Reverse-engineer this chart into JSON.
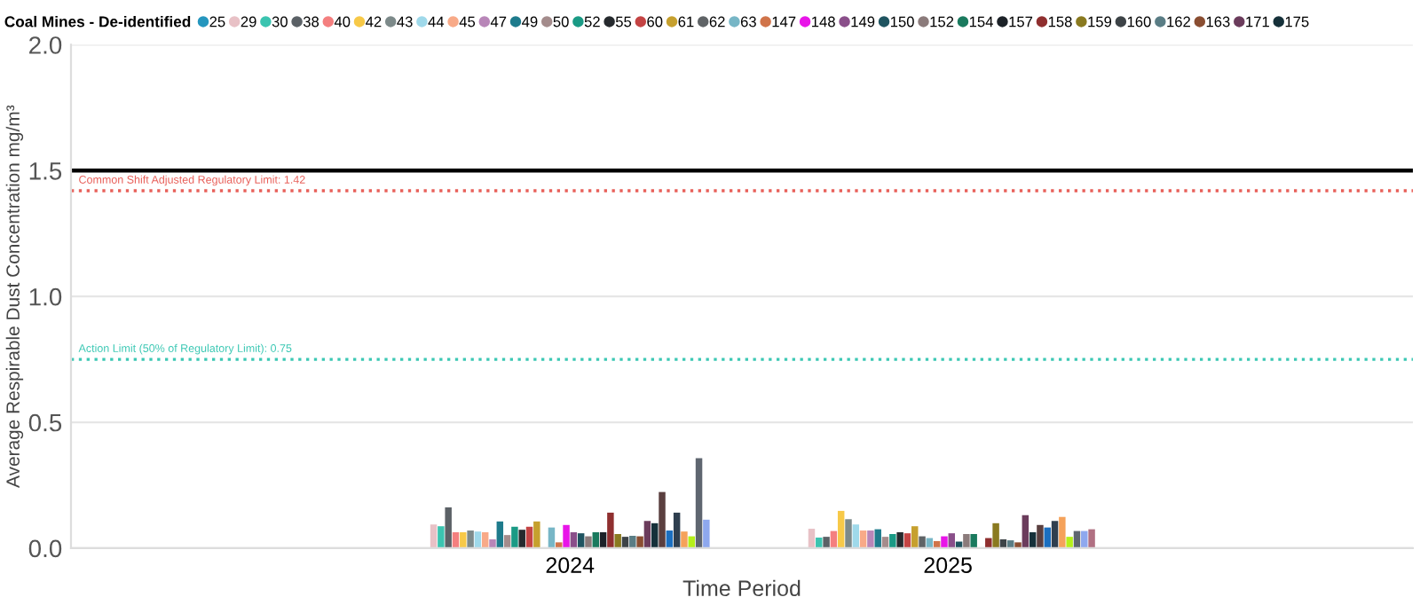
{
  "chart_data": {
    "type": "bar",
    "xlabel": "Time Period",
    "ylabel": "Average Respirable Dust Concentration mg/m³",
    "legend_title": "Coal Mines - De-identified",
    "categories": [
      "2024",
      "2025"
    ],
    "ylim": [
      0,
      2.0
    ],
    "yticks": [
      {
        "value": 0,
        "label": "0.0"
      },
      {
        "value": 0.5,
        "label": "0.5"
      },
      {
        "value": 1.0,
        "label": "1.0"
      },
      {
        "value": 1.5,
        "label": "1.5"
      },
      {
        "value": 2.0,
        "label": "2.0"
      }
    ],
    "grid": "y",
    "legend": "top",
    "ref_lines": [
      {
        "axis": "y",
        "value": 1.5,
        "color": "#000000",
        "line_style": "solid"
      },
      {
        "axis": "y",
        "value": 1.42,
        "label": "Common Shift Adjusted Regulatory Limit: 1.42",
        "color": "#e8605a",
        "line_style": "dotted"
      },
      {
        "axis": "y",
        "value": 0.75,
        "label": "Action Limit (50% of Regulatory Limit): 0.75",
        "color": "#3cc8b4",
        "line_style": "dotted"
      }
    ],
    "series": [
      {
        "name": "25",
        "color": "#2596be",
        "values": [
          null,
          null
        ]
      },
      {
        "name": "29",
        "color": "#e8c1c6",
        "values": [
          0.094,
          0.077
        ]
      },
      {
        "name": "30",
        "color": "#3bc4b0",
        "values": [
          0.087,
          0.042
        ]
      },
      {
        "name": "38",
        "color": "#5b6166",
        "values": [
          0.162,
          0.045
        ]
      },
      {
        "name": "40",
        "color": "#f47f7f",
        "values": [
          0.063,
          0.068
        ]
      },
      {
        "name": "42",
        "color": "#f7c948",
        "values": [
          0.063,
          0.148
        ]
      },
      {
        "name": "43",
        "color": "#7d8a8a",
        "values": [
          0.07,
          0.115
        ]
      },
      {
        "name": "44",
        "color": "#9fd9ea",
        "values": [
          0.066,
          0.094
        ]
      },
      {
        "name": "45",
        "color": "#f8aa88",
        "values": [
          0.063,
          0.07
        ]
      },
      {
        "name": "47",
        "color": "#b886b8",
        "values": [
          0.035,
          0.07
        ]
      },
      {
        "name": "49",
        "color": "#1e7b8c",
        "values": [
          0.106,
          0.075
        ]
      },
      {
        "name": "50",
        "color": "#a48c8c",
        "values": [
          0.052,
          0.045
        ]
      },
      {
        "name": "52",
        "color": "#1a9a85",
        "values": [
          0.085,
          0.056
        ]
      },
      {
        "name": "55",
        "color": "#262a2e",
        "values": [
          0.073,
          0.063
        ]
      },
      {
        "name": "60",
        "color": "#c44444",
        "values": [
          0.085,
          0.059
        ]
      },
      {
        "name": "61",
        "color": "#c6a02e",
        "values": [
          0.106,
          0.087
        ]
      },
      {
        "name": "62",
        "color": "#5f6366",
        "values": [
          null,
          0.047
        ]
      },
      {
        "name": "63",
        "color": "#77b6c6",
        "values": [
          0.082,
          0.04
        ]
      },
      {
        "name": "147",
        "color": "#d0744a",
        "values": [
          0.023,
          0.028
        ]
      },
      {
        "name": "148",
        "color": "#e815e8",
        "values": [
          0.092,
          0.047
        ]
      },
      {
        "name": "149",
        "color": "#8a4f8a",
        "values": [
          0.063,
          0.059
        ]
      },
      {
        "name": "150",
        "color": "#1f5460",
        "values": [
          0.059,
          0.026
        ]
      },
      {
        "name": "152",
        "color": "#8b7b7b",
        "values": [
          0.047,
          0.056
        ]
      },
      {
        "name": "154",
        "color": "#1a7a5e",
        "values": [
          0.063,
          0.056
        ]
      },
      {
        "name": "157",
        "color": "#1c2228",
        "values": [
          0.063,
          null
        ]
      },
      {
        "name": "158",
        "color": "#8f2f2f",
        "values": [
          0.141,
          0.04
        ]
      },
      {
        "name": "159",
        "color": "#8a7a20",
        "values": [
          0.056,
          0.099
        ]
      },
      {
        "name": "160",
        "color": "#3d4347",
        "values": [
          0.045,
          0.035
        ]
      },
      {
        "name": "162",
        "color": "#5a7d85",
        "values": [
          0.049,
          0.031
        ]
      },
      {
        "name": "163",
        "color": "#8a4e32",
        "values": [
          0.047,
          0.023
        ]
      },
      {
        "name": "171",
        "color": "#6b3c5c",
        "values": [
          0.108,
          0.131
        ]
      },
      {
        "name": "175",
        "color": "#16313a",
        "values": [
          0.099,
          0.063
        ]
      },
      {
        "color": "#5a3f3f",
        "values": [
          0.223,
          0.092
        ]
      },
      {
        "color": "#1b6fc0",
        "values": [
          0.07,
          0.082
        ]
      },
      {
        "color": "#2f3f4f",
        "values": [
          0.141,
          0.108
        ]
      },
      {
        "color": "#f5a25a",
        "values": [
          0.066,
          0.124
        ]
      },
      {
        "color": "#b5f01a",
        "values": [
          0.047,
          0.045
        ]
      },
      {
        "color": "#5f6670",
        "values": [
          0.357,
          0.068
        ]
      },
      {
        "color": "#8ea8ee",
        "values": [
          0.113,
          0.068
        ]
      },
      {
        "color": "#b07082",
        "values": [
          null,
          0.075
        ]
      }
    ]
  }
}
